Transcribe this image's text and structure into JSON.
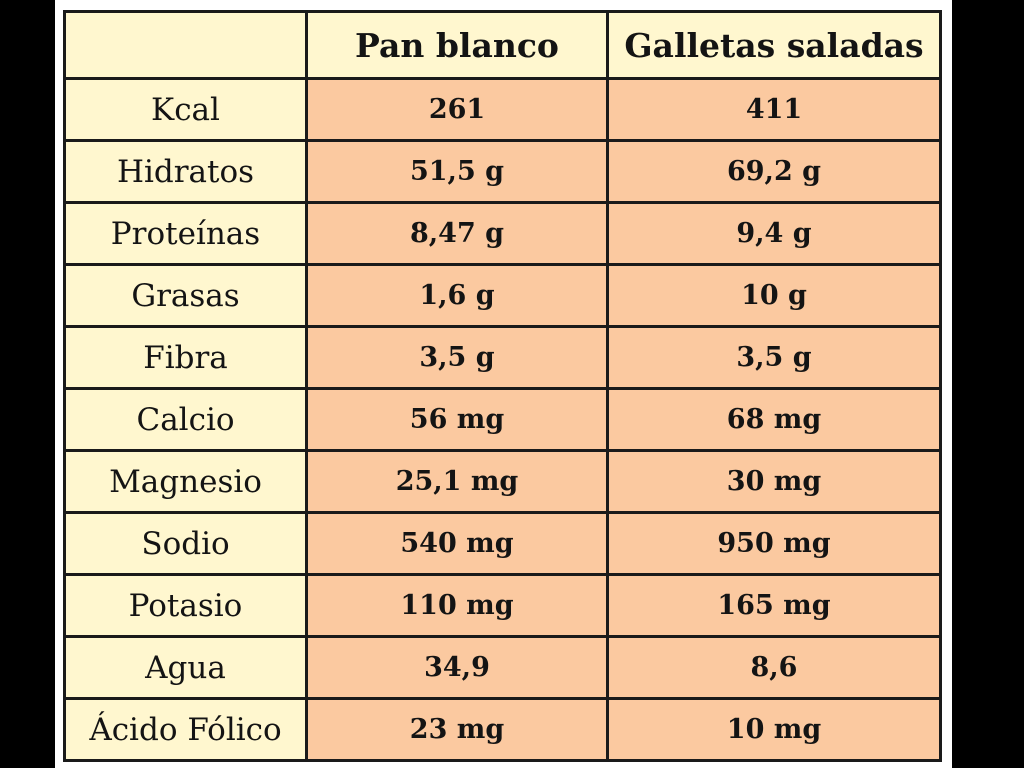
{
  "table": {
    "columns": [
      "",
      "Pan blanco",
      "Galletas saladas"
    ],
    "rows": [
      {
        "label": "Kcal",
        "pan_blanco": "261",
        "galletas_saladas": "411"
      },
      {
        "label": "Hidratos",
        "pan_blanco": "51,5 g",
        "galletas_saladas": "69,2 g"
      },
      {
        "label": "Proteínas",
        "pan_blanco": "8,47 g",
        "galletas_saladas": "9,4 g"
      },
      {
        "label": "Grasas",
        "pan_blanco": "1,6 g",
        "galletas_saladas": "10 g"
      },
      {
        "label": "Fibra",
        "pan_blanco": "3,5 g",
        "galletas_saladas": "3,5 g"
      },
      {
        "label": "Calcio",
        "pan_blanco": "56 mg",
        "galletas_saladas": "68 mg"
      },
      {
        "label": "Magnesio",
        "pan_blanco": "25,1 mg",
        "galletas_saladas": "30 mg"
      },
      {
        "label": "Sodio",
        "pan_blanco": "540 mg",
        "galletas_saladas": "950 mg"
      },
      {
        "label": "Potasio",
        "pan_blanco": "110 mg",
        "galletas_saladas": "165 mg"
      },
      {
        "label": "Agua",
        "pan_blanco": "34,9",
        "galletas_saladas": "8,6"
      },
      {
        "label": "Ácido Fólico",
        "pan_blanco": "23 mg",
        "galletas_saladas": "10 mg"
      }
    ]
  },
  "colors": {
    "header_background": "#fff7cf",
    "value_background": "#fbc9a0",
    "border": "#1a1a1a",
    "frame": "#000000"
  }
}
